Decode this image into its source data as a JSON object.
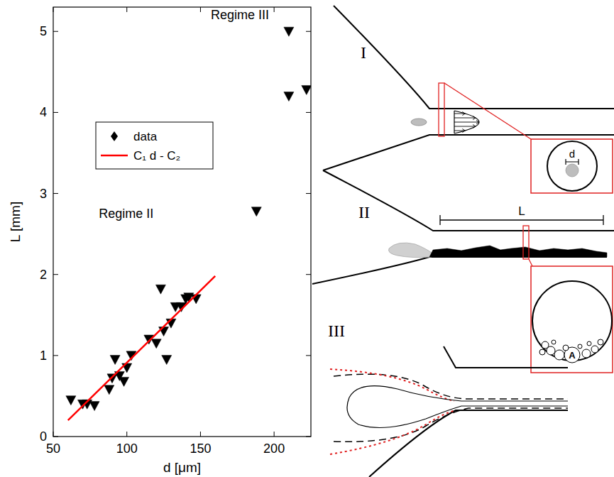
{
  "chart_data": {
    "type": "scatter",
    "x_label": "d [μm]",
    "y_label": "L [mm]",
    "xlim": [
      50,
      225
    ],
    "ylim": [
      0,
      5.3
    ],
    "xticks": [
      50,
      100,
      150,
      200
    ],
    "yticks": [
      0,
      1,
      2,
      3,
      4,
      5
    ],
    "grid": false,
    "legend": "upper left",
    "series": [
      {
        "name": "data",
        "type": "scatter",
        "marker": "triangle-down",
        "color": "#000000",
        "x": [
          62,
          70,
          73,
          78,
          88,
          90,
          92,
          95,
          98,
          100,
          103,
          115,
          120,
          123,
          125,
          127,
          130,
          133,
          137,
          140,
          142,
          147,
          188,
          210,
          210,
          222
        ],
        "values": [
          0.45,
          0.4,
          0.4,
          0.38,
          0.58,
          0.72,
          0.95,
          0.75,
          0.68,
          0.85,
          1.0,
          1.2,
          1.15,
          1.82,
          1.3,
          0.95,
          1.4,
          1.6,
          1.6,
          1.7,
          1.72,
          1.7,
          2.78,
          5.0,
          4.2,
          4.28
        ]
      },
      {
        "name": "C₁ d - C₂",
        "type": "line",
        "line_style": "solid",
        "color": "#ff0000",
        "x": [
          60,
          160
        ],
        "values": [
          0.2,
          1.98
        ]
      }
    ],
    "annotations": [
      {
        "text": "Regime II"
      },
      {
        "text": "Regime III"
      }
    ]
  },
  "diagram": {
    "panel_labels": [
      "I",
      "II",
      "III"
    ],
    "diameter_label": "d",
    "length_label": "L",
    "deposit_label": "A"
  }
}
